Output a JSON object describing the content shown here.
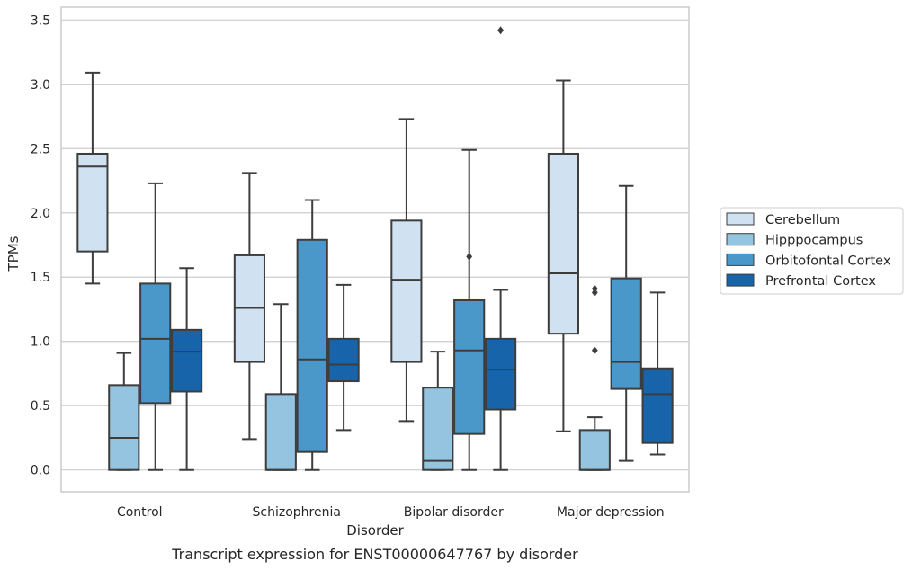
{
  "chart_data": {
    "type": "box",
    "xlabel": "Disorder",
    "ylabel": "TPMs",
    "caption": "Transcript expression for ENST00000647767 by disorder",
    "ylim": [
      -0.17,
      3.6
    ],
    "yticks": [
      0.0,
      0.5,
      1.0,
      1.5,
      2.0,
      2.5,
      3.0,
      3.5
    ],
    "grid": true,
    "legend_position": "right",
    "categories": [
      "Control",
      "Schizophrenia",
      "Bipolar disorder",
      "Major depression"
    ],
    "series": [
      {
        "name": "Cerebellum",
        "color": "#d0e1f2",
        "boxes": [
          {
            "min": 1.45,
            "q1": 1.7,
            "median": 2.36,
            "q3": 2.46,
            "max": 3.09,
            "outliers": []
          },
          {
            "min": 0.24,
            "q1": 0.84,
            "median": 1.26,
            "q3": 1.67,
            "max": 2.31,
            "outliers": []
          },
          {
            "min": 0.38,
            "q1": 0.84,
            "median": 1.48,
            "q3": 1.94,
            "max": 2.73,
            "outliers": []
          },
          {
            "min": 0.3,
            "q1": 1.06,
            "median": 1.53,
            "q3": 2.46,
            "max": 3.03,
            "outliers": []
          }
        ]
      },
      {
        "name": "Hipppocampus",
        "color": "#94c4df",
        "boxes": [
          {
            "min": 0.0,
            "q1": 0.0,
            "median": 0.25,
            "q3": 0.66,
            "max": 0.91,
            "outliers": []
          },
          {
            "min": 0.0,
            "q1": 0.0,
            "median": 0.0,
            "q3": 0.59,
            "max": 1.29,
            "outliers": []
          },
          {
            "min": 0.0,
            "q1": 0.0,
            "median": 0.07,
            "q3": 0.64,
            "max": 0.92,
            "outliers": []
          },
          {
            "min": 0.0,
            "q1": 0.0,
            "median": 0.0,
            "q3": 0.31,
            "max": 0.41,
            "outliers": [
              1.38,
              1.41,
              0.93
            ]
          }
        ]
      },
      {
        "name": "Orbitofontal Cortex",
        "color": "#4a98c9",
        "boxes": [
          {
            "min": 0.0,
            "q1": 0.52,
            "median": 1.02,
            "q3": 1.45,
            "max": 2.23,
            "outliers": []
          },
          {
            "min": 0.0,
            "q1": 0.14,
            "median": 0.86,
            "q3": 1.79,
            "max": 2.1,
            "outliers": []
          },
          {
            "min": 0.0,
            "q1": 0.28,
            "median": 0.93,
            "q3": 1.32,
            "max": 2.49,
            "outliers": [
              1.66
            ]
          },
          {
            "min": 0.07,
            "q1": 0.63,
            "median": 0.84,
            "q3": 1.49,
            "max": 2.21,
            "outliers": []
          }
        ]
      },
      {
        "name": "Prefrontal Cortex",
        "color": "#1764ab",
        "boxes": [
          {
            "min": 0.0,
            "q1": 0.61,
            "median": 0.92,
            "q3": 1.09,
            "max": 1.57,
            "outliers": []
          },
          {
            "min": 0.31,
            "q1": 0.69,
            "median": 0.82,
            "q3": 1.02,
            "max": 1.44,
            "outliers": []
          },
          {
            "min": 0.0,
            "q1": 0.47,
            "median": 0.78,
            "q3": 1.02,
            "max": 1.4,
            "outliers": [
              3.42
            ]
          },
          {
            "min": 0.12,
            "q1": 0.21,
            "median": 0.59,
            "q3": 0.79,
            "max": 1.38,
            "outliers": []
          }
        ]
      }
    ]
  }
}
